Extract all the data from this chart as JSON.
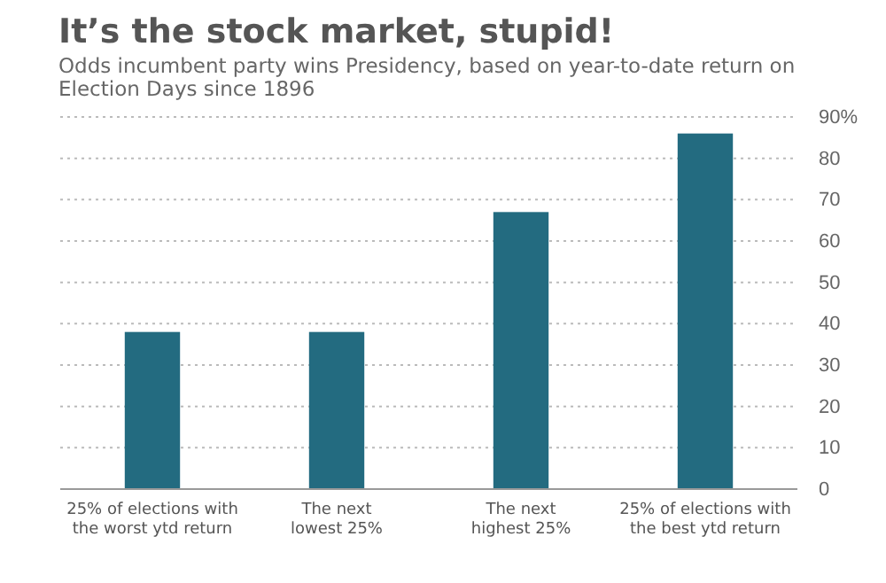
{
  "chart_data": {
    "type": "bar",
    "title": "It’s the stock market, stupid!",
    "subtitle": "Odds incumbent party wins Presidency, based on year-to-date return on Election Days since 1896",
    "categories": [
      "25% of elections with the worst ytd return",
      "The next lowest 25%",
      "The next highest 25%",
      "25% of elections with the best ytd return"
    ],
    "values": [
      38,
      38,
      67,
      86
    ],
    "color": "#236b80",
    "ylim": [
      0,
      90
    ],
    "yticks": [
      0,
      10,
      20,
      30,
      40,
      50,
      60,
      70,
      80,
      {
        "value": 90,
        "label": "90%"
      }
    ],
    "grid": "y"
  }
}
